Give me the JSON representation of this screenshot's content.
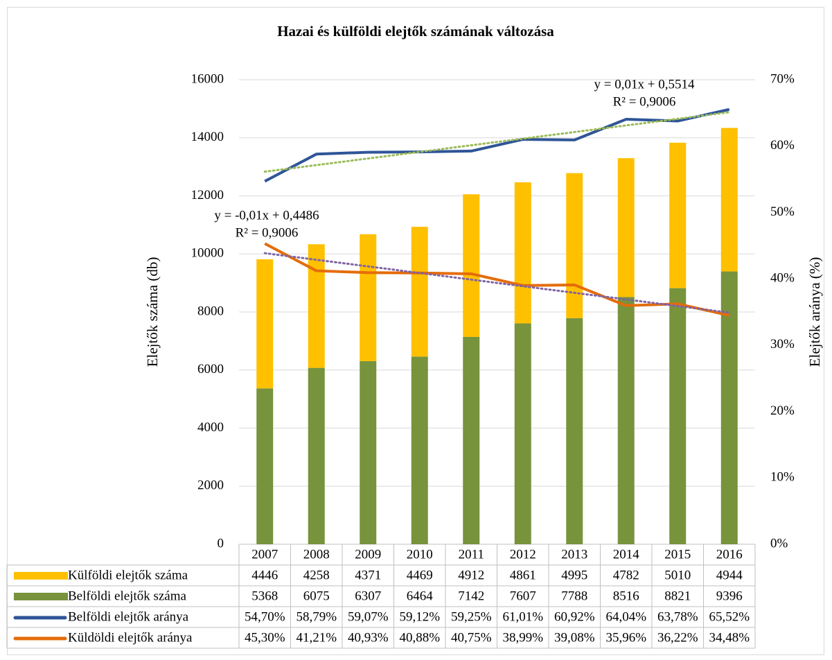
{
  "chart_data": {
    "type": "bar",
    "title": "Hazai és külföldi elejtők számának változása",
    "y_label": "Elejtők száma (db)",
    "y2_label": "Elejtők aránya (%)",
    "categories": [
      "2007",
      "2008",
      "2009",
      "2010",
      "2011",
      "2012",
      "2013",
      "2014",
      "2015",
      "2016"
    ],
    "series": [
      {
        "name": "Külföldi elejtők száma",
        "type": "bar",
        "color": "#ffc000",
        "values": [
          4446,
          4258,
          4371,
          4469,
          4912,
          4861,
          4995,
          4782,
          5010,
          4944
        ]
      },
      {
        "name": "Belföldi elejtők száma",
        "type": "bar",
        "color": "#77933c",
        "values": [
          5368,
          6075,
          6307,
          6464,
          7142,
          7607,
          7788,
          8516,
          8821,
          9396
        ]
      },
      {
        "name": "Belföldi elejtők aránya",
        "type": "line",
        "axis": "y2",
        "color": "#2f5597",
        "trendline_color": "#9bbb59",
        "values": [
          54.7,
          58.79,
          59.07,
          59.12,
          59.25,
          61.01,
          60.92,
          64.04,
          63.78,
          65.52
        ],
        "value_labels": [
          "54,70%",
          "58,79%",
          "59,07%",
          "59,12%",
          "59,25%",
          "61,01%",
          "60,92%",
          "64,04%",
          "63,78%",
          "65,52%"
        ]
      },
      {
        "name": "Küldöldi elejtők aránya",
        "type": "line",
        "axis": "y2",
        "color": "#e46c0a",
        "trendline_color": "#8064a2",
        "values": [
          45.3,
          41.21,
          40.93,
          40.88,
          40.75,
          38.99,
          39.08,
          35.96,
          36.22,
          34.48
        ],
        "value_labels": [
          "45,30%",
          "41,21%",
          "40,93%",
          "40,88%",
          "40,75%",
          "38,99%",
          "39,08%",
          "35,96%",
          "36,22%",
          "34,48%"
        ]
      }
    ],
    "annotations": [
      "y = 0,01x + 0,5514",
      "R² = 0,9006",
      "y = -0,01x + 0,4486",
      "R² = 0,9006"
    ],
    "ylim": [
      0,
      16000
    ],
    "yticks": [
      0,
      2000,
      4000,
      6000,
      8000,
      10000,
      12000,
      14000,
      16000
    ],
    "y2lim": [
      0,
      70
    ],
    "y2ticks": [
      {
        "value": 0,
        "label": "0%"
      },
      {
        "value": 10,
        "label": "10%"
      },
      {
        "value": 20,
        "label": "20%"
      },
      {
        "value": 30,
        "label": "30%"
      },
      {
        "value": 40,
        "label": "40%"
      },
      {
        "value": 50,
        "label": "50%"
      },
      {
        "value": 60,
        "label": "60%"
      },
      {
        "value": 70,
        "label": "70%"
      }
    ],
    "grid": true
  }
}
